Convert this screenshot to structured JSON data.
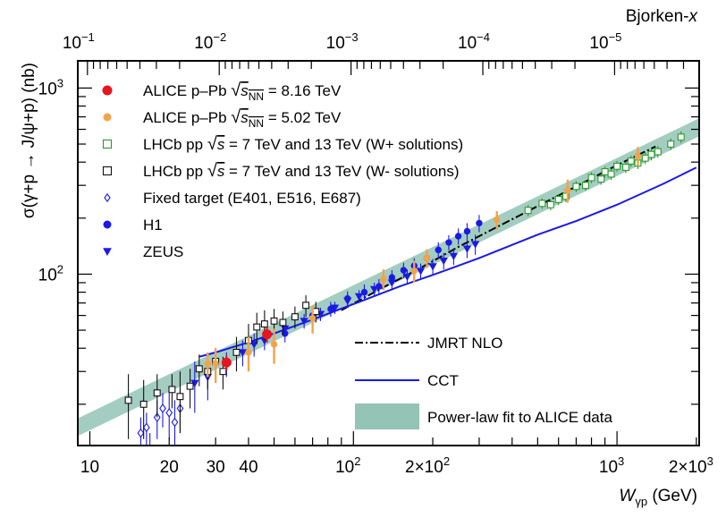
{
  "chart_data": {
    "type": "scatter",
    "title": "",
    "xlabel": "W",
    "xlabel_subscript": "γp",
    "xlabel_unit": "(GeV)",
    "ylabel": "σ(γ+p → J/ψ+p) (nb)",
    "x2label_main": "Bjorken-",
    "x2label_italic": "x",
    "xscale": "log",
    "yscale": "log",
    "xlim": [
      9,
      2050
    ],
    "ylim": [
      12,
      1400
    ],
    "grid": false,
    "legend_position": "top-left",
    "x_ticks": [
      {
        "value": 10,
        "label": "10"
      },
      {
        "value": 20,
        "label": "20"
      },
      {
        "value": 30,
        "label": "30"
      },
      {
        "value": 40,
        "label": "40"
      },
      {
        "value": 100,
        "mant": "10",
        "exp": "2"
      },
      {
        "value": 200,
        "mant": "2×10",
        "exp": "2"
      },
      {
        "value": 1000,
        "mant": "10",
        "exp": "3"
      },
      {
        "value": 2000,
        "mant": "2×10",
        "exp": "3"
      }
    ],
    "y_ticks": [
      {
        "value": 100,
        "mant": "10",
        "exp": "2"
      },
      {
        "value": 1000,
        "mant": "10",
        "exp": "3"
      }
    ],
    "x2_ticks": [
      {
        "value": 0.1,
        "mant": "10",
        "exp": "−1"
      },
      {
        "value": 0.01,
        "mant": "10",
        "exp": "−2"
      },
      {
        "value": 0.001,
        "mant": "10",
        "exp": "−3"
      },
      {
        "value": 0.0001,
        "mant": "10",
        "exp": "−4"
      },
      {
        "value": 1e-05,
        "mant": "10",
        "exp": "−5"
      }
    ],
    "series": [
      {
        "name": "ALICE p–Pb √sNN = 8.16 TeV",
        "legend": {
          "pre": "ALICE p–Pb ",
          "root": "s",
          "sub": "NN",
          "post": " = 8.16 TeV"
        },
        "marker": "circle-filled",
        "color": "#e8141e",
        "size": 5,
        "points": [
          [
            33.0,
            33.5,
            3.0
          ],
          [
            47.0,
            47.5,
            4.5
          ]
        ]
      },
      {
        "name": "ALICE p–Pb √sNN = 5.02 TeV",
        "legend": {
          "pre": "ALICE p–Pb ",
          "root": "s",
          "sub": "NN",
          "post": " = 5.02 TeV"
        },
        "marker": "circle-filled",
        "color": "#f4a24a",
        "size": 3.2,
        "points": [
          [
            28.0,
            33.0,
            5.0
          ],
          [
            30.0,
            33.0,
            7.0
          ],
          [
            40.0,
            38.0,
            8.0
          ],
          [
            50.0,
            42.0,
            9.0
          ],
          [
            70.0,
            58.0,
            10.0
          ],
          [
            130.0,
            94.0,
            12.0
          ],
          [
            170.0,
            104.0,
            14.0
          ],
          [
            190.0,
            122.0,
            14.0
          ],
          [
            350.0,
            196.0,
            22.0
          ],
          [
            650.0,
            282.0,
            40.0
          ],
          [
            1200.0,
            432.0,
            50.0
          ]
        ]
      },
      {
        "name": "LHCb pp √s = 7 TeV and 13 TeV (W+ solutions)",
        "legend": {
          "pre": "LHCb pp ",
          "root": "s",
          "sub": "",
          "post": " = 7 TeV and 13 TeV (W+ solutions)"
        },
        "marker": "square-open",
        "color": "#2a9a2a",
        "size": 3.4,
        "points": [
          [
            460,
            220,
            15
          ],
          [
            520,
            240,
            16
          ],
          [
            560,
            236,
            16
          ],
          [
            600,
            252,
            17
          ],
          [
            640,
            262,
            18
          ],
          [
            700,
            296,
            20
          ],
          [
            760,
            300,
            20
          ],
          [
            800,
            330,
            22
          ],
          [
            870,
            324,
            22
          ],
          [
            900,
            355,
            24
          ],
          [
            950,
            345,
            24
          ],
          [
            1000,
            380,
            26
          ],
          [
            1080,
            375,
            26
          ],
          [
            1130,
            405,
            28
          ],
          [
            1200,
            395,
            28
          ],
          [
            1280,
            420,
            30
          ],
          [
            1350,
            440,
            32
          ],
          [
            1430,
            455,
            33
          ],
          [
            1600,
            500,
            36
          ],
          [
            1750,
            545,
            40
          ]
        ]
      },
      {
        "name": "LHCb pp √s = 7 TeV and 13 TeV (W- solutions)",
        "legend": {
          "pre": "LHCb pp ",
          "root": "s",
          "sub": "",
          "post": " = 7 TeV and 13 TeV (W- solutions)"
        },
        "marker": "square-open",
        "color": "#111111",
        "size": 3.4,
        "points": [
          [
            14.0,
            21.0,
            8.0
          ],
          [
            16.0,
            20.0,
            7.0
          ],
          [
            18.0,
            23.0,
            6.0
          ],
          [
            20.5,
            24.0,
            5.0
          ],
          [
            22.0,
            22.0,
            8.0
          ],
          [
            24.0,
            25.0,
            6.0
          ],
          [
            26.0,
            31.0,
            6.0
          ],
          [
            28.0,
            30.0,
            6.0
          ],
          [
            30.0,
            34.0,
            6.0
          ],
          [
            32.0,
            30.0,
            6.0
          ],
          [
            36.0,
            38.0,
            8.0
          ],
          [
            40.0,
            44.0,
            10.0
          ],
          [
            43.0,
            52.0,
            10.0
          ],
          [
            46.0,
            54.0,
            10.0
          ],
          [
            50.0,
            56.0,
            9.0
          ],
          [
            54.0,
            55.0,
            8.0
          ],
          [
            60.0,
            59.0,
            8.0
          ],
          [
            66.0,
            68.0,
            9.0
          ],
          [
            72.0,
            63.0,
            8.0
          ]
        ]
      },
      {
        "name": "Fixed target (E401, E516, E687)",
        "legend": {
          "plain": "Fixed target (E401, E516, E687)"
        },
        "marker": "diamond-open",
        "color": "#1a1ae6",
        "size": 3.2,
        "points": [
          [
            15.6,
            14.0,
            3.0
          ],
          [
            16.4,
            15.0,
            3.0
          ],
          [
            16.9,
            11.5,
            2.5
          ],
          [
            18.0,
            17.0,
            4.0
          ],
          [
            18.9,
            19.0,
            4.0
          ],
          [
            20.0,
            18.0,
            5.0
          ],
          [
            21.0,
            16.0,
            5.0
          ],
          [
            22.0,
            19.0,
            5.0
          ]
        ]
      },
      {
        "name": "H1",
        "legend": {
          "plain": "H1"
        },
        "marker": "circle-filled",
        "color": "#1a1ae6",
        "size": 3.2,
        "points": [
          [
            55,
            48,
            5
          ],
          [
            70,
            60,
            6
          ],
          [
            82,
            65,
            6
          ],
          [
            95,
            74,
            7
          ],
          [
            110,
            80,
            8
          ],
          [
            125,
            86,
            8
          ],
          [
            140,
            96,
            9
          ],
          [
            155,
            105,
            10
          ],
          [
            170,
            111,
            11
          ],
          [
            190,
            122,
            12
          ],
          [
            210,
            135,
            13
          ],
          [
            230,
            148,
            14
          ],
          [
            250,
            160,
            16
          ],
          [
            270,
            170,
            18
          ],
          [
            300,
            188,
            20
          ]
        ]
      },
      {
        "name": "ZEUS",
        "legend": {
          "plain": "ZEUS"
        },
        "marker": "triangle-down-filled",
        "color": "#1a1ae6",
        "size": 3.8,
        "points": [
          [
            25,
            26,
            8
          ],
          [
            28,
            28,
            7
          ],
          [
            33,
            33,
            5
          ],
          [
            38,
            38,
            6
          ],
          [
            42,
            42,
            6
          ],
          [
            46,
            44,
            5
          ],
          [
            55,
            51,
            5
          ],
          [
            65,
            56,
            5
          ],
          [
            75,
            61,
            5
          ],
          [
            85,
            66,
            5
          ],
          [
            95,
            72,
            6
          ],
          [
            105,
            76,
            6
          ],
          [
            120,
            83,
            7
          ],
          [
            140,
            90,
            8
          ],
          [
            160,
            97,
            9
          ],
          [
            180,
            104,
            10
          ],
          [
            200,
            110,
            11
          ],
          [
            220,
            118,
            12
          ],
          [
            240,
            125,
            13
          ],
          [
            270,
            137,
            15
          ],
          [
            290,
            145,
            18
          ]
        ]
      }
    ],
    "curves": [
      {
        "name": "JMRT NLO",
        "style": "dashdot",
        "color": "#000000",
        "x": [
          90,
          130,
          180,
          250,
          350,
          500,
          700,
          1000,
          1400
        ],
        "y": [
          64,
          85,
          108,
          140,
          179,
          232,
          296,
          385,
          485
        ]
      },
      {
        "name": "CCT",
        "style": "solid",
        "color": "#1a1ae6",
        "x": [
          26,
          30,
          40,
          50,
          70,
          100,
          150,
          200,
          300,
          500,
          700,
          1000,
          1500,
          2000
        ],
        "y": [
          36,
          38,
          43,
          48,
          57,
          69,
          86,
          99,
          122,
          163,
          193,
          236,
          306,
          374
        ]
      },
      {
        "name": "Power-law fit to ALICE data",
        "style": "band",
        "color": "#93c4b6",
        "x": [
          9,
          2050
        ],
        "y_low": [
          13.5,
          550
        ],
        "y_high": [
          16.8,
          688
        ]
      }
    ]
  }
}
